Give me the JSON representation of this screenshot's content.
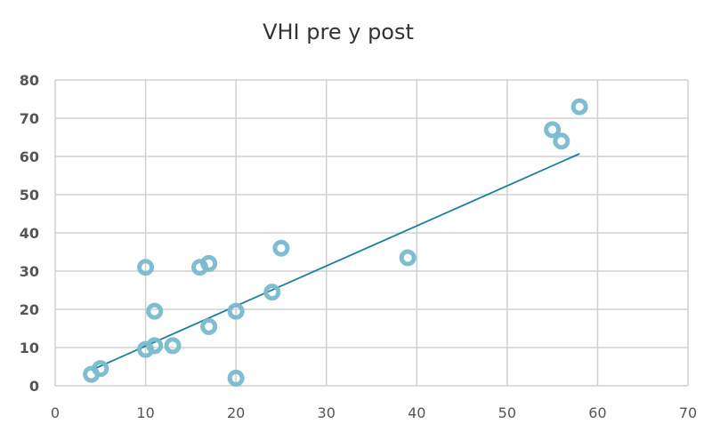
{
  "chart_data": {
    "type": "scatter",
    "title": "VHI pre y post",
    "xlabel": "",
    "ylabel": "",
    "xlim": [
      0,
      70
    ],
    "ylim": [
      0,
      80
    ],
    "xticks": [
      0,
      10,
      20,
      30,
      40,
      50,
      60,
      70
    ],
    "yticks": [
      0,
      10,
      20,
      30,
      40,
      50,
      60,
      70,
      80
    ],
    "xtick_labels": [
      "0",
      "10",
      "20",
      "30",
      "40",
      "50",
      "60",
      "70"
    ],
    "ytick_labels": [
      "0",
      "10",
      "20",
      "30",
      "40",
      "50",
      "60",
      "70",
      "80"
    ],
    "grid": true,
    "legend": "none",
    "points": [
      {
        "x": 4,
        "y": 3
      },
      {
        "x": 5,
        "y": 4.5
      },
      {
        "x": 10,
        "y": 9.5
      },
      {
        "x": 11,
        "y": 10.5
      },
      {
        "x": 13,
        "y": 10.5
      },
      {
        "x": 11,
        "y": 19.5
      },
      {
        "x": 10,
        "y": 31
      },
      {
        "x": 16,
        "y": 31
      },
      {
        "x": 17,
        "y": 32
      },
      {
        "x": 17,
        "y": 15.5
      },
      {
        "x": 20,
        "y": 19.5
      },
      {
        "x": 20,
        "y": 2
      },
      {
        "x": 24,
        "y": 24.5
      },
      {
        "x": 25,
        "y": 36
      },
      {
        "x": 39,
        "y": 33.5
      },
      {
        "x": 55,
        "y": 67
      },
      {
        "x": 56,
        "y": 64
      },
      {
        "x": 58,
        "y": 73
      }
    ],
    "trendline": {
      "x": [
        4,
        58
      ],
      "y": [
        4.1,
        60.7
      ]
    },
    "colors": {
      "marker": "#7ab9cf",
      "trendline": "#1a7f9c",
      "grid": "#d0d0d0",
      "axis_text": "#555555"
    }
  }
}
